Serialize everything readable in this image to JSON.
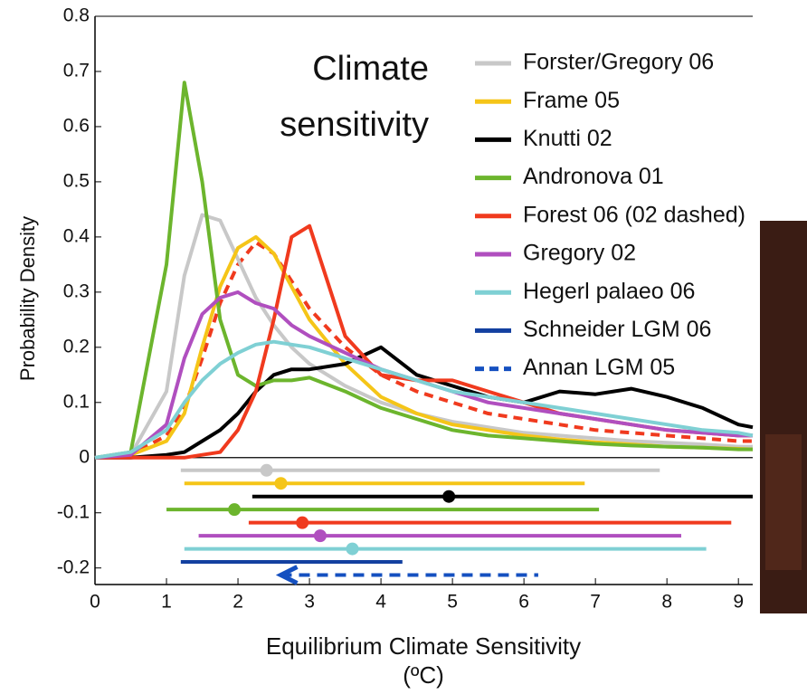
{
  "chart_data": {
    "type": "line",
    "title": [
      "Climate",
      "sensitivity"
    ],
    "xlabel": [
      "Equilibrium Climate Sensitivity",
      "(ºC)"
    ],
    "ylabel": "Probability Density",
    "legend": "upper right",
    "xlim": [
      0,
      9.2
    ],
    "ylim": [
      -0.23,
      0.8
    ],
    "xticks": [
      0,
      1,
      2,
      3,
      4,
      5,
      6,
      7,
      8,
      9
    ],
    "yticks": [
      0.8,
      0.7,
      0.6,
      0.5,
      0.4,
      0.3,
      0.2,
      0.1,
      0,
      -0.1,
      -0.2
    ],
    "x": [
      0,
      0.5,
      1,
      1.25,
      1.5,
      1.75,
      2,
      2.25,
      2.5,
      2.75,
      3,
      3.5,
      4,
      4.5,
      5,
      5.5,
      6,
      6.5,
      7,
      7.5,
      8,
      8.5,
      9,
      9.2
    ],
    "series": [
      {
        "name": "Forster/Gregory 06",
        "color": "#c8c8c8",
        "range": [
          1.2,
          7.9
        ],
        "best": 2.4,
        "values": [
          0,
          0.005,
          0.12,
          0.33,
          0.44,
          0.43,
          0.36,
          0.29,
          0.24,
          0.2,
          0.17,
          0.13,
          0.1,
          0.08,
          0.065,
          0.055,
          0.045,
          0.04,
          0.035,
          0.03,
          0.027,
          0.024,
          0.02,
          0.02
        ]
      },
      {
        "name": "Frame 05",
        "color": "#f5c518",
        "range": [
          1.25,
          6.85
        ],
        "best": 2.6,
        "values": [
          0,
          0.005,
          0.03,
          0.08,
          0.2,
          0.31,
          0.38,
          0.4,
          0.37,
          0.31,
          0.25,
          0.17,
          0.11,
          0.08,
          0.06,
          0.05,
          0.04,
          0.033,
          0.028,
          0.024,
          0.02,
          0.018,
          0.016,
          0.015
        ]
      },
      {
        "name": "Knutti 02",
        "color": "#000000",
        "range": [
          2.2,
          9.2
        ],
        "best": 4.95,
        "values": [
          0,
          0,
          0.005,
          0.01,
          0.03,
          0.05,
          0.08,
          0.12,
          0.15,
          0.16,
          0.16,
          0.17,
          0.2,
          0.15,
          0.13,
          0.11,
          0.1,
          0.12,
          0.115,
          0.125,
          0.11,
          0.09,
          0.06,
          0.055
        ]
      },
      {
        "name": "Andronova 01",
        "color": "#6cb52d",
        "range": [
          1.0,
          7.05
        ],
        "best": 1.95,
        "values": [
          0,
          0.01,
          0.35,
          0.68,
          0.5,
          0.25,
          0.15,
          0.13,
          0.14,
          0.14,
          0.145,
          0.12,
          0.09,
          0.07,
          0.05,
          0.04,
          0.035,
          0.03,
          0.025,
          0.022,
          0.02,
          0.018,
          0.015,
          0.015
        ]
      },
      {
        "name": "Forest 06 (02 dashed)",
        "color": "#f03a1e",
        "range": [
          2.15,
          8.9
        ],
        "best": 2.9,
        "values": [
          0,
          0,
          0,
          0,
          0.005,
          0.01,
          0.05,
          0.12,
          0.25,
          0.4,
          0.42,
          0.22,
          0.15,
          0.14,
          0.14,
          0.12,
          0.1,
          0.08,
          0.07,
          0.06,
          0.05,
          0.045,
          0.04,
          0.04
        ],
        "dashed_values": [
          0,
          0.005,
          0.04,
          0.09,
          0.18,
          0.28,
          0.35,
          0.39,
          0.37,
          0.32,
          0.27,
          0.2,
          0.15,
          0.12,
          0.1,
          0.08,
          0.07,
          0.06,
          0.05,
          0.045,
          0.04,
          0.035,
          0.03,
          0.03
        ]
      },
      {
        "name": "Gregory 02",
        "color": "#b04fbf",
        "range": [
          1.45,
          8.2
        ],
        "best": 3.15,
        "values": [
          0,
          0.005,
          0.06,
          0.18,
          0.26,
          0.29,
          0.3,
          0.28,
          0.27,
          0.24,
          0.22,
          0.19,
          0.16,
          0.14,
          0.12,
          0.1,
          0.09,
          0.08,
          0.07,
          0.06,
          0.05,
          0.045,
          0.04,
          0.04
        ]
      },
      {
        "name": "Hegerl palaeo 06",
        "color": "#7fd0d4",
        "range": [
          1.25,
          8.55
        ],
        "best": 3.6,
        "values": [
          0,
          0.01,
          0.05,
          0.1,
          0.14,
          0.17,
          0.19,
          0.205,
          0.21,
          0.205,
          0.2,
          0.18,
          0.16,
          0.14,
          0.12,
          0.11,
          0.1,
          0.09,
          0.08,
          0.07,
          0.06,
          0.05,
          0.045,
          0.04
        ]
      },
      {
        "name": "Schneider LGM 06",
        "color": "#1340a0",
        "range": [
          1.2,
          4.3
        ]
      },
      {
        "name": "Annan LGM 05",
        "color": "#1550c0",
        "dashed": true,
        "range": [
          2.6,
          6.2
        ]
      }
    ]
  }
}
